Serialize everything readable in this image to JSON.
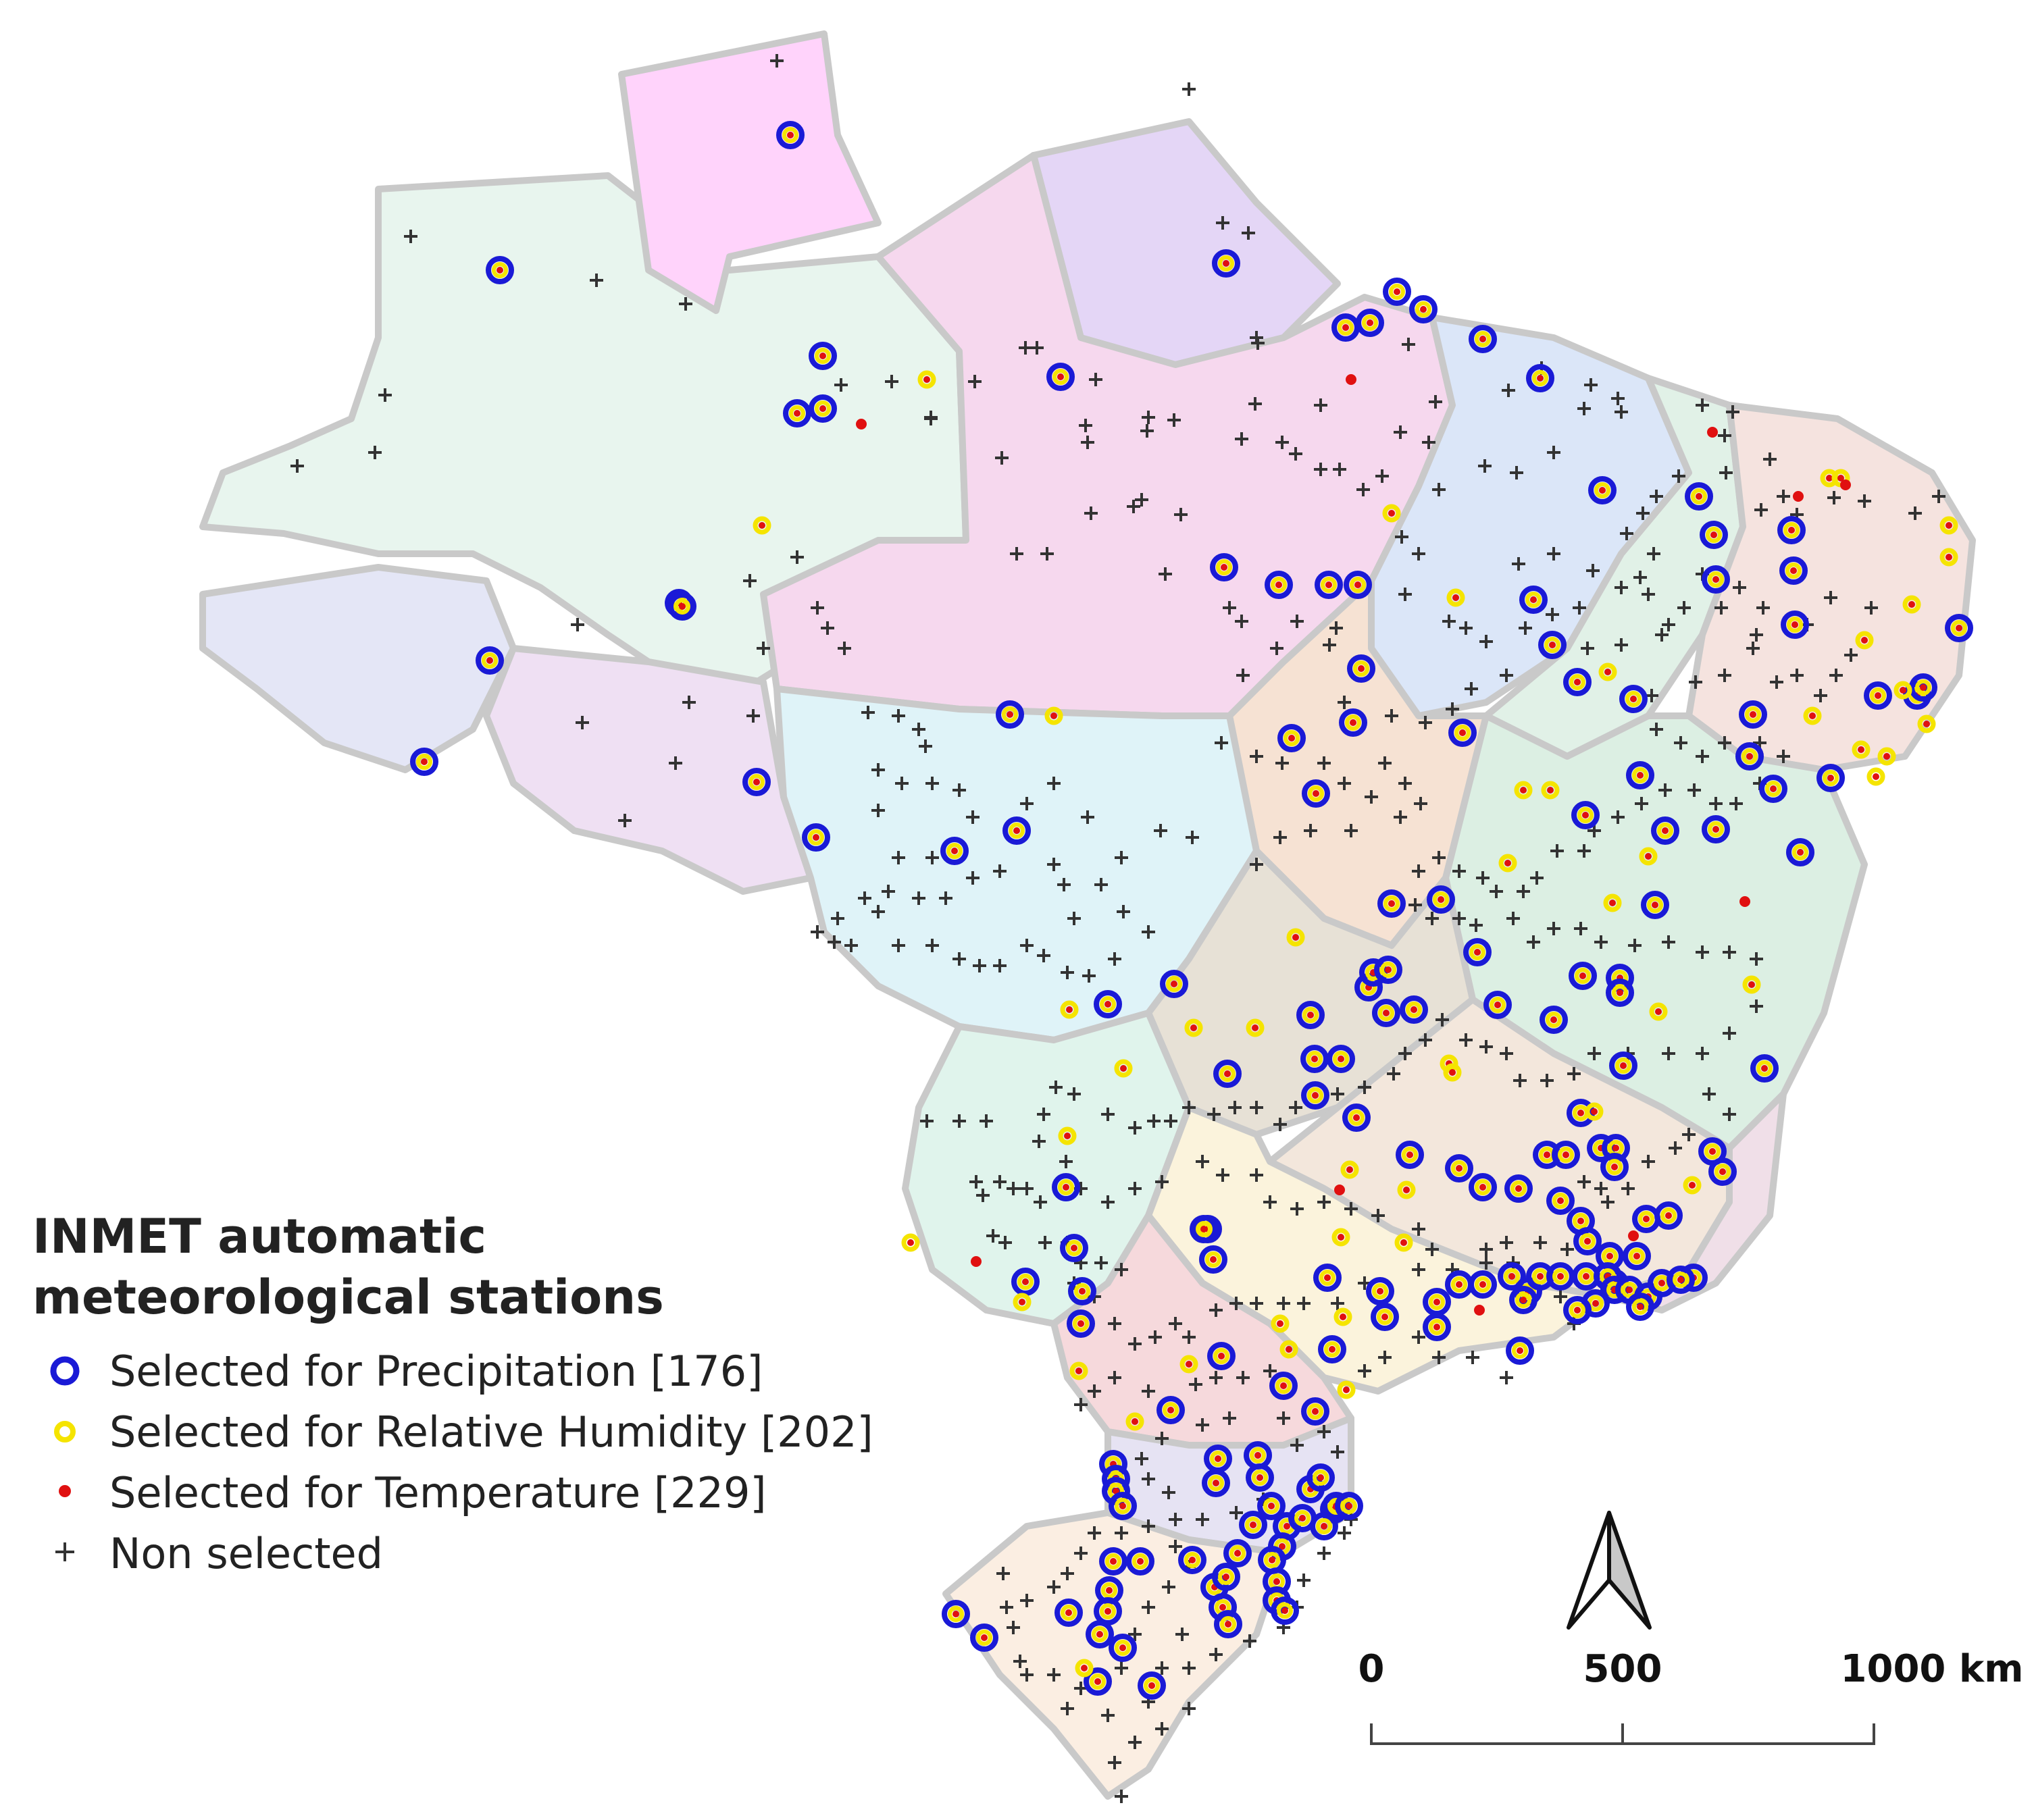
{
  "legend": {
    "title_line1": "INMET automatic",
    "title_line2": "meteorological stations",
    "items": [
      {
        "label": "Selected for Precipitation [176]",
        "symbol": "blue-ring-icon"
      },
      {
        "label": "Selected for Relative Humidity [202]",
        "symbol": "yellow-ring-icon"
      },
      {
        "label": "Selected for Temperature [229]",
        "symbol": "red-dot-icon"
      },
      {
        "label": "Non selected",
        "symbol": "plus-icon"
      }
    ]
  },
  "scale_bar": {
    "labels": [
      "0",
      "500",
      "1000 km"
    ]
  },
  "north_arrow": {
    "symbol": "north-arrow-icon"
  },
  "colors": {
    "precipitation": "#1a1ad6",
    "humidity": "#f5e400",
    "temperature": "#e01010",
    "non_selected": "#333333",
    "region_border": "#c9c9c9"
  }
}
